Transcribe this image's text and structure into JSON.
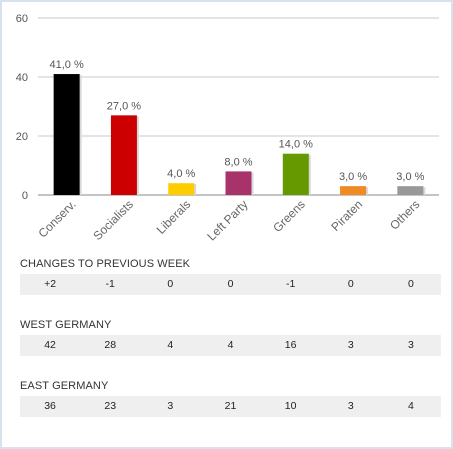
{
  "chart_data": {
    "type": "bar",
    "categories": [
      "Conserv.",
      "Socialists",
      "Liberals",
      "Left Party",
      "Greens",
      "Piraten",
      "Others"
    ],
    "values": [
      41.0,
      27.0,
      4.0,
      8.0,
      14.0,
      3.0,
      3.0
    ],
    "value_labels": [
      "41,0 %",
      "27,0 %",
      "4,0 %",
      "8,0 %",
      "14,0 %",
      "3,0 %",
      "3,0 %"
    ],
    "colors": [
      "#000000",
      "#cc0000",
      "#ffcc00",
      "#a8336b",
      "#669900",
      "#f08a24",
      "#999999"
    ],
    "ylim": [
      0,
      60
    ],
    "yticks": [
      0,
      20,
      40,
      60
    ],
    "grid": true,
    "title": "",
    "xlabel": "",
    "ylabel": ""
  },
  "tables": [
    {
      "title": "CHANGES TO PREVIOUS WEEK",
      "values": [
        "+2",
        "-1",
        "0",
        "0",
        "-1",
        "0",
        "0"
      ]
    },
    {
      "title": "WEST GERMANY",
      "values": [
        "42",
        "28",
        "4",
        "4",
        "16",
        "3",
        "3"
      ]
    },
    {
      "title": "EAST GERMANY",
      "values": [
        "36",
        "23",
        "3",
        "21",
        "10",
        "3",
        "4"
      ]
    }
  ]
}
